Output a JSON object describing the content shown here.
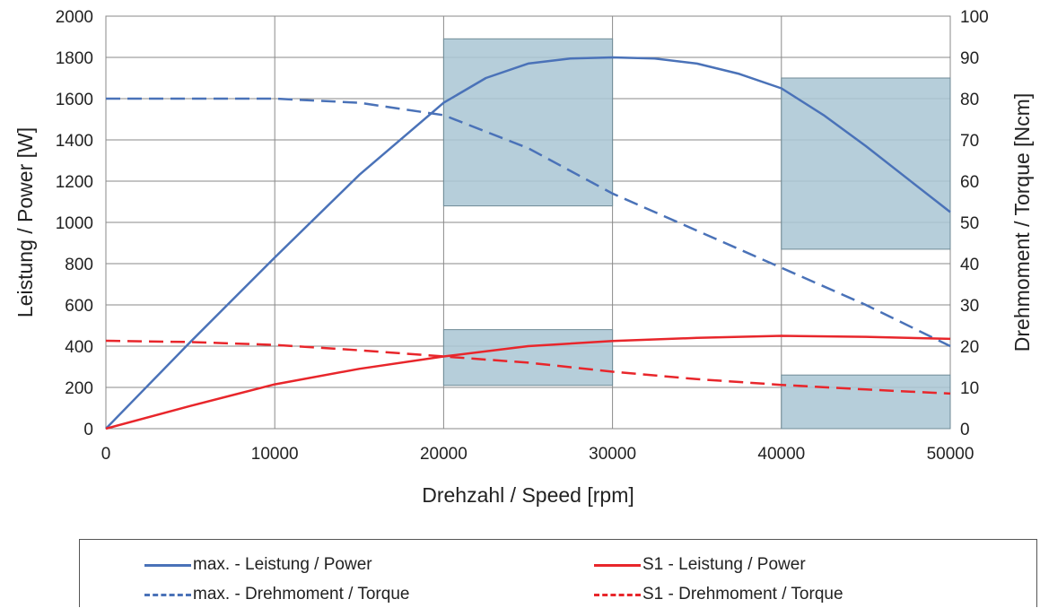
{
  "chart_data": {
    "type": "line",
    "xlabel": "Drehzahl / Speed [rpm]",
    "ylabel_left": "Leistung / Power [W]",
    "ylabel_right": "Drehmoment / Torque [Ncm]",
    "xlim": [
      0,
      50000
    ],
    "ylim_left": [
      0,
      2000
    ],
    "ylim_right": [
      0,
      100
    ],
    "x_ticks": [
      "0",
      "10000",
      "20000",
      "30000",
      "40000",
      "50000"
    ],
    "y_left_ticks": [
      "0",
      "200",
      "400",
      "600",
      "800",
      "1000",
      "1200",
      "1400",
      "1600",
      "1800",
      "2000"
    ],
    "y_right_ticks": [
      "0",
      "10",
      "20",
      "30",
      "40",
      "50",
      "60",
      "70",
      "80",
      "90",
      "100"
    ],
    "grid": true,
    "legend_position": "bottom",
    "series": [
      {
        "name": "max. - Leistung / Power",
        "axis": "left",
        "color": "#4a72b8",
        "dash": false,
        "x": [
          0,
          5000,
          10000,
          15000,
          20000,
          22500,
          25000,
          27500,
          30000,
          32500,
          35000,
          37500,
          40000,
          42500,
          45000,
          47500,
          50000
        ],
        "y": [
          0,
          420,
          830,
          1230,
          1580,
          1700,
          1770,
          1795,
          1800,
          1795,
          1770,
          1720,
          1650,
          1520,
          1370,
          1210,
          1050
        ]
      },
      {
        "name": "max. - Drehmoment / Torque",
        "axis": "right",
        "color": "#4a72b8",
        "dash": true,
        "x": [
          0,
          5000,
          10000,
          15000,
          20000,
          25000,
          30000,
          35000,
          40000,
          45000,
          50000
        ],
        "y": [
          80,
          80,
          80,
          79,
          76,
          68,
          57,
          48,
          39,
          30,
          20
        ]
      },
      {
        "name": "S1 - Leistung / Power",
        "axis": "left",
        "color": "#e8262b",
        "dash": false,
        "x": [
          0,
          5000,
          10000,
          15000,
          20000,
          25000,
          30000,
          35000,
          40000,
          45000,
          50000
        ],
        "y": [
          0,
          110,
          215,
          290,
          350,
          400,
          425,
          440,
          450,
          445,
          435
        ]
      },
      {
        "name": "S1 - Drehmoment / Torque",
        "axis": "right",
        "color": "#e8262b",
        "dash": true,
        "x": [
          0,
          5000,
          10000,
          15000,
          20000,
          25000,
          30000,
          35000,
          40000,
          45000,
          50000
        ],
        "y": [
          21.3,
          21,
          20.3,
          19,
          17.5,
          16,
          13.8,
          12,
          10.6,
          9.5,
          8.5
        ]
      }
    ],
    "shaded_regions": [
      {
        "x": [
          20000,
          30000
        ],
        "y_left": [
          1080,
          1890
        ]
      },
      {
        "x": [
          40000,
          50000
        ],
        "y_left": [
          870,
          1700
        ]
      },
      {
        "x": [
          20000,
          30000
        ],
        "y_left": [
          210,
          480
        ]
      },
      {
        "x": [
          40000,
          50000
        ],
        "y_left": [
          0,
          260
        ]
      }
    ],
    "shade_color": "#a9c6d4"
  }
}
